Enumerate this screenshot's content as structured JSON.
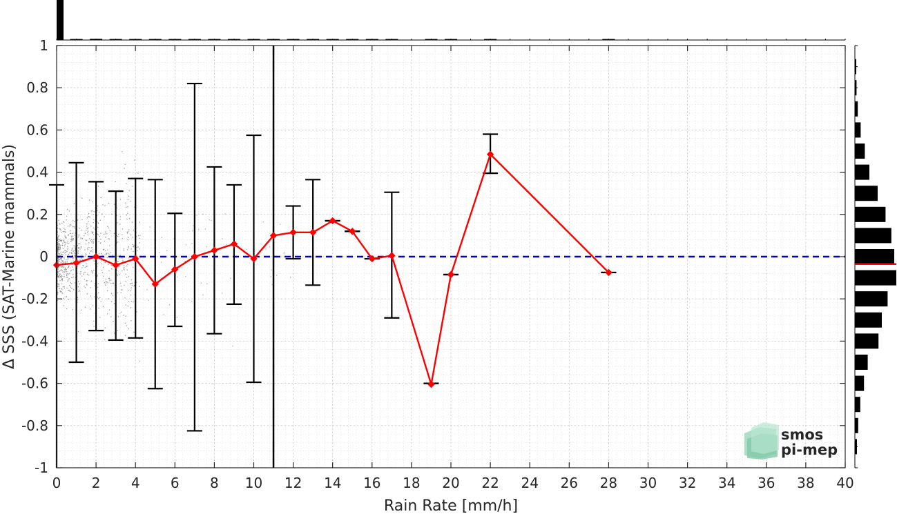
{
  "chart_data": {
    "type": "line",
    "xlabel": "Rain Rate [mm/h]",
    "ylabel": "Δ SSS (SAT-Marine mammals)",
    "xlim": [
      0,
      40
    ],
    "ylim": [
      -1,
      1
    ],
    "x_ticks": [
      "0",
      "2",
      "4",
      "6",
      "8",
      "10",
      "12",
      "14",
      "16",
      "18",
      "20",
      "22",
      "24",
      "26",
      "28",
      "30",
      "32",
      "34",
      "36",
      "38",
      "40"
    ],
    "y_ticks": [
      "1",
      "0.8",
      "0.6",
      "0.4",
      "0.2",
      "0",
      "-0.2",
      "-0.4",
      "-0.6",
      "-0.8",
      "-1"
    ],
    "grid": true,
    "reference_line": {
      "y": 0,
      "style": "dashed",
      "color": "#0000cc"
    },
    "vertical_marker": {
      "x": 11,
      "color": "#000000"
    },
    "series": [
      {
        "color": "#ff0000",
        "x": [
          0,
          1,
          2,
          3,
          4,
          5,
          6,
          7,
          8,
          9,
          10,
          11,
          12,
          13,
          14,
          15,
          16,
          17,
          19,
          20,
          22,
          28
        ],
        "y": [
          -0.04,
          -0.03,
          0.0,
          -0.04,
          -0.01,
          -0.13,
          -0.06,
          0.0,
          0.03,
          0.06,
          -0.01,
          0.1,
          0.115,
          0.115,
          0.17,
          0.12,
          -0.01,
          0.005,
          -0.605,
          -0.085,
          0.485,
          -0.075
        ],
        "err_low": [
          null,
          -0.5,
          -0.35,
          -0.395,
          -0.385,
          -0.625,
          -0.33,
          -0.825,
          -0.365,
          -0.225,
          -0.595,
          null,
          -0.01,
          -0.135,
          0.17,
          0.12,
          -0.01,
          -0.29,
          -0.6,
          -0.085,
          0.395,
          -0.075
        ],
        "err_high": [
          0.34,
          0.445,
          0.355,
          0.31,
          0.37,
          0.365,
          0.205,
          0.82,
          0.425,
          0.34,
          0.575,
          null,
          0.24,
          0.365,
          0.17,
          0.12,
          -0.01,
          0.305,
          -0.6,
          -0.085,
          0.58,
          -0.075
        ]
      }
    ],
    "top_histogram": {
      "bins": [
        0,
        1,
        2,
        3,
        4,
        5,
        6,
        7,
        8,
        9,
        10,
        11,
        12,
        13,
        14,
        15,
        16,
        17,
        19,
        20,
        22,
        28
      ],
      "counts": [
        1.0,
        0.02,
        0.03,
        0.015,
        0.012,
        0.01,
        0.01,
        0.01,
        0.01,
        0.01,
        0.01,
        0.01,
        0.01,
        0.01,
        0.01,
        0.01,
        0.01,
        0.01,
        0.01,
        0.01,
        0.01,
        0.01
      ]
    },
    "right_histogram": {
      "bin_centers": [
        0.9,
        0.8,
        0.7,
        0.6,
        0.5,
        0.4,
        0.3,
        0.2,
        0.1,
        0.0,
        -0.1,
        -0.2,
        -0.3,
        -0.4,
        -0.5,
        -0.6,
        -0.7,
        -0.8,
        -0.9
      ],
      "counts": [
        0.02,
        0.04,
        0.07,
        0.14,
        0.24,
        0.35,
        0.55,
        0.74,
        0.88,
        0.95,
        1.0,
        0.79,
        0.65,
        0.57,
        0.31,
        0.22,
        0.13,
        0.08,
        0.05
      ],
      "mean": -0.035,
      "mean_color": "#ff0000"
    }
  },
  "logo": {
    "line1": "smos",
    "line2": "pi-mep"
  }
}
